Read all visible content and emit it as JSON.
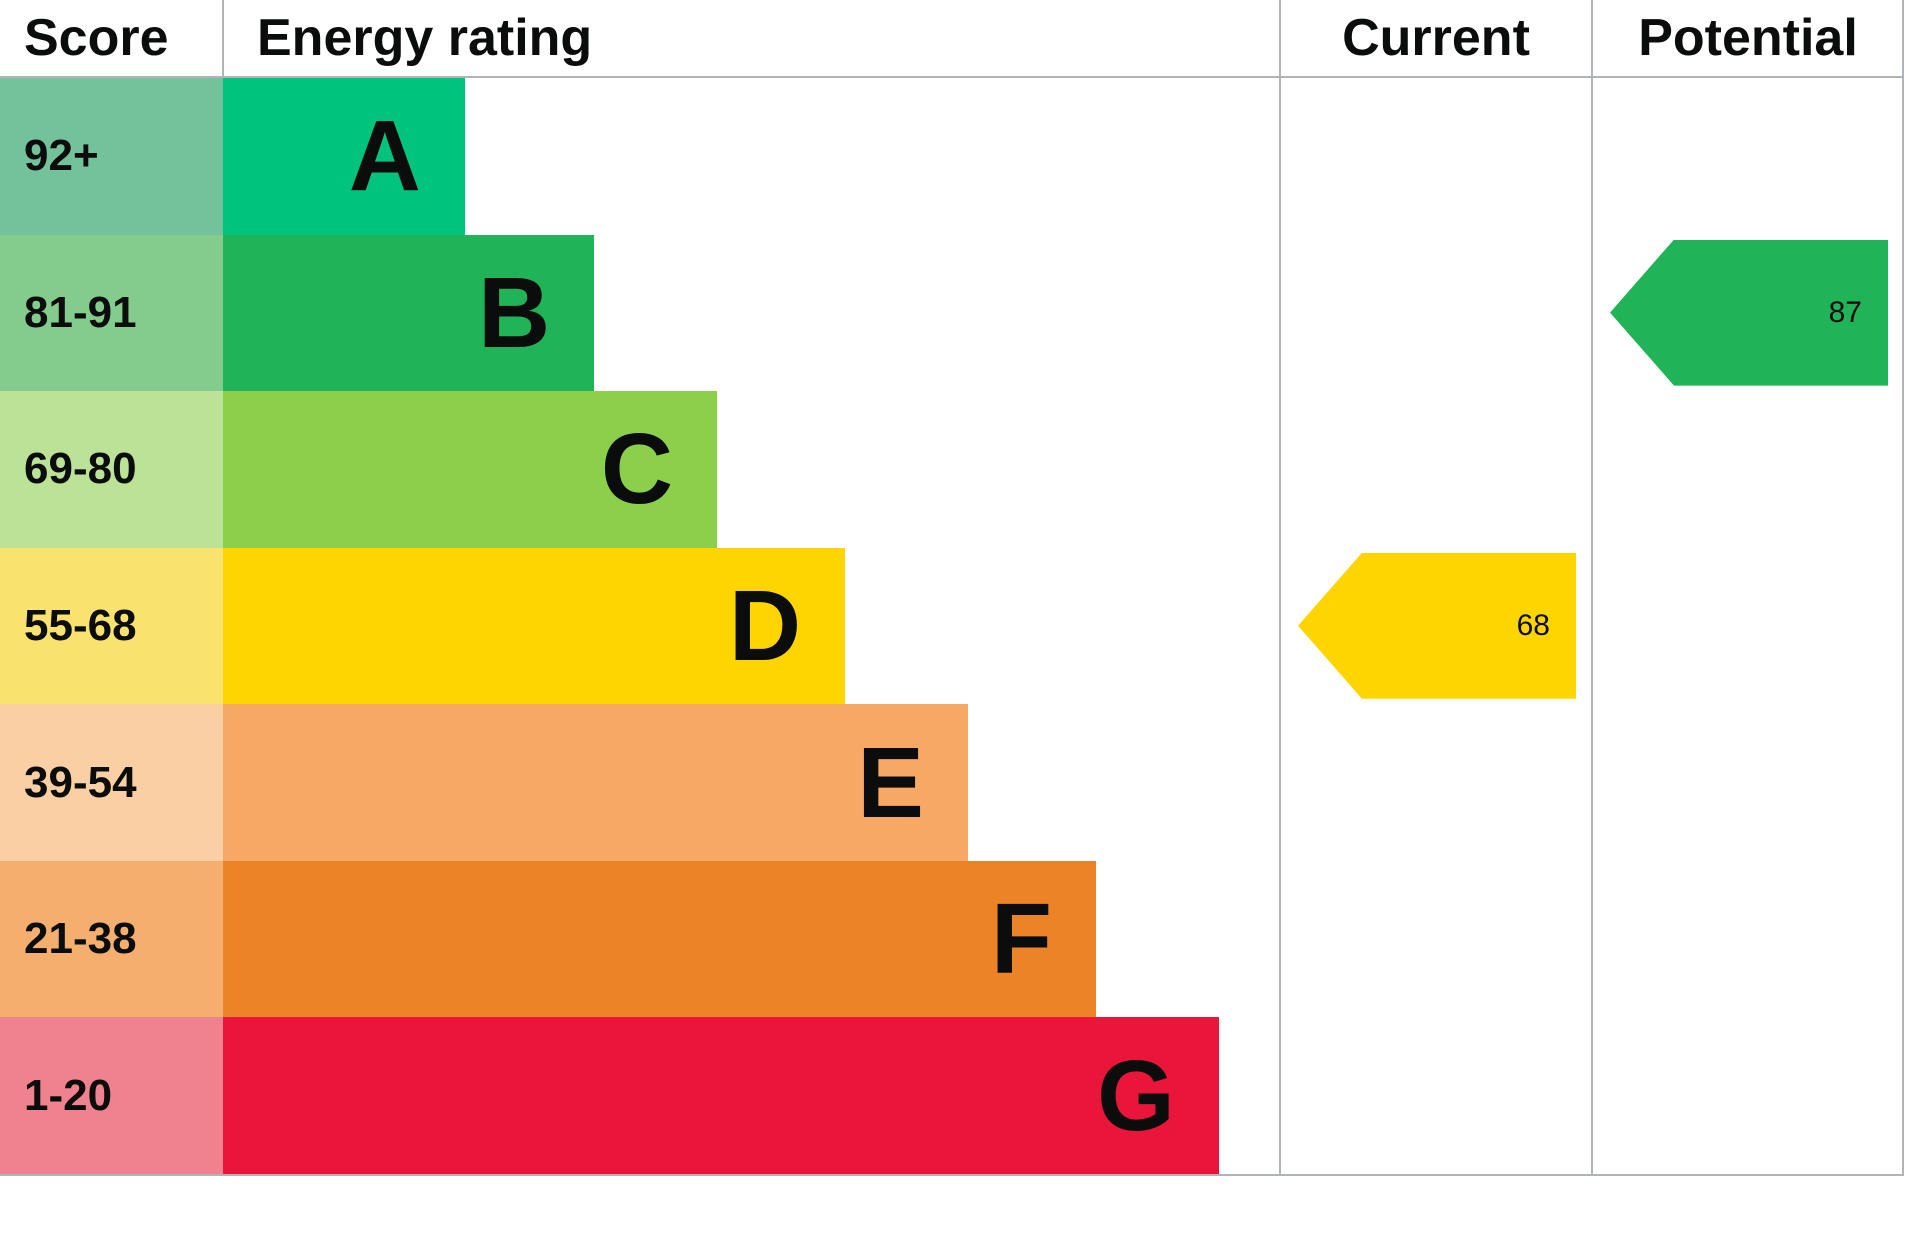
{
  "header": {
    "score": "Score",
    "energy_rating": "Energy rating",
    "current": "Current",
    "potential": "Potential"
  },
  "chart_data": {
    "type": "bar",
    "subtype": "epc-energy-rating",
    "title": "Energy rating",
    "categories": [
      "A",
      "B",
      "C",
      "D",
      "E",
      "F",
      "G"
    ],
    "bands": [
      {
        "letter": "A",
        "score": "92+",
        "bar_color": "#00c47e",
        "score_bg": "#73c29c",
        "width_pct": 18.9
      },
      {
        "letter": "B",
        "score": "81-91",
        "bar_color": "#21b357",
        "score_bg": "#84cb8e",
        "width_pct": 29.0
      },
      {
        "letter": "C",
        "score": "69-80",
        "bar_color": "#8ccf4b",
        "score_bg": "#bce297",
        "width_pct": 38.6
      },
      {
        "letter": "D",
        "score": "55-68",
        "bar_color": "#ffd500",
        "score_bg": "#fae26e",
        "width_pct": 48.6
      },
      {
        "letter": "E",
        "score": "39-54",
        "bar_color": "#f8a865",
        "score_bg": "#fbcfa4",
        "width_pct": 58.2
      },
      {
        "letter": "F",
        "score": "21-38",
        "bar_color": "#ed8327",
        "score_bg": "#f4ae6e",
        "width_pct": 68.2
      },
      {
        "letter": "G",
        "score": "1-20",
        "bar_color": "#e9153b",
        "score_bg": "#f0818f",
        "width_pct": 77.8
      }
    ],
    "current": {
      "value": 68,
      "band": "D",
      "row_index": 3,
      "color": "#ffd500"
    },
    "potential": {
      "value": 87,
      "band": "B",
      "row_index": 1,
      "color": "#21b357"
    },
    "layout": {
      "grid_line_color": "#b1b4b6",
      "legend": "none",
      "grid": "column-dividers-only"
    }
  }
}
